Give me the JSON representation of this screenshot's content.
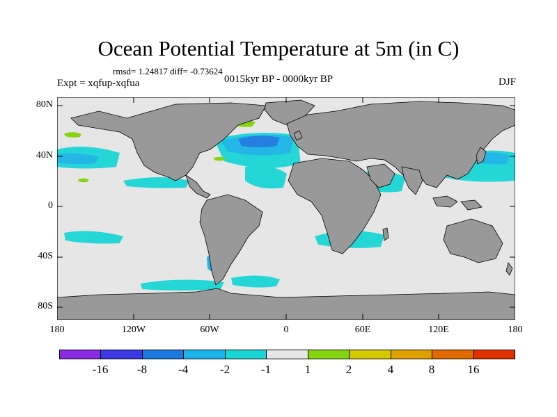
{
  "title": "Ocean Potential Temperature at 5m (in C)",
  "stats": "rmsd= 1.24817 diff= -0.73624",
  "experiment": "Expt = xqfup-xqfua",
  "period": "0015kyr BP - 0000kyr BP",
  "season": "DJF",
  "map": {
    "y_labels": [
      "80N",
      "40N",
      "0",
      "40S",
      "80S"
    ],
    "x_labels": [
      "180",
      "120W",
      "60W",
      "0",
      "60E",
      "120E",
      "180"
    ],
    "land_color": "#999999",
    "ocean_color": "#e6e6e6"
  },
  "colorbar": {
    "colors": [
      "#8a2be2",
      "#3a3ae0",
      "#1a7ae0",
      "#1ab4e8",
      "#1ad6d6",
      "#e6e6e6",
      "#84d50f",
      "#d4c800",
      "#e0a000",
      "#e06a00",
      "#e03000"
    ],
    "labels": [
      "-16",
      "-8",
      "-4",
      "-2",
      "-1",
      "1",
      "2",
      "4",
      "8",
      "16"
    ]
  }
}
